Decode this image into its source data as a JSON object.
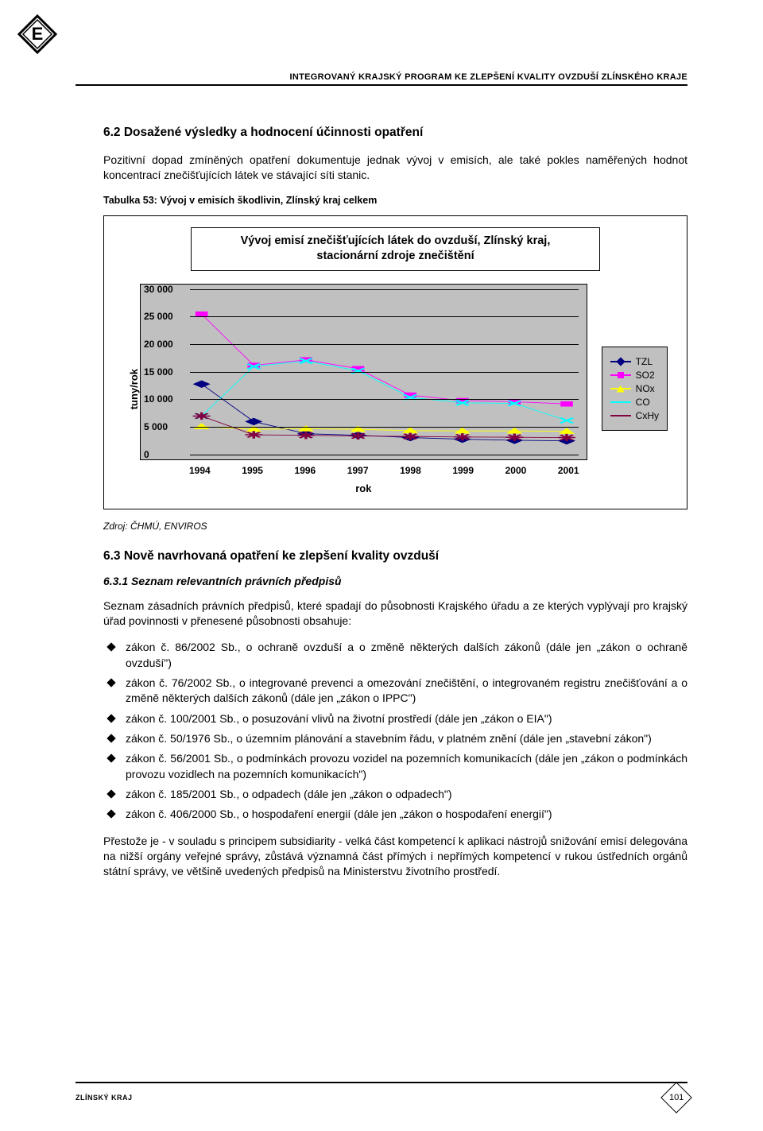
{
  "header": {
    "program_label": "INTEGROVANÝ KRAJSKÝ PROGRAM KE ZLEPŠENÍ KVALITY OVZDUŠÍ ZLÍNSKÉHO KRAJE"
  },
  "section_6_2": {
    "heading": "6.2   Dosažené výsledky a hodnocení účinnosti opatření",
    "paragraph": "Pozitivní dopad zmíněných opatření dokumentuje jednak vývoj v emisích, ale také pokles naměřených hodnot koncentrací znečišťujících látek ve stávající síti stanic.",
    "table_caption": "Tabulka 53:  Vývoj v emisích škodlivin, Zlínský kraj celkem"
  },
  "chart": {
    "title_line1": "Vývoj emisí znečišťujících látek do ovzduší, Zlínský kraj,",
    "title_line2": "stacionární zdroje znečištění",
    "y_label": "tuny/rok",
    "x_label": "rok",
    "ylim": [
      0,
      30000
    ],
    "ytick_step": 5000,
    "yticks": [
      "0",
      "5 000",
      "10 000",
      "15 000",
      "20 000",
      "25 000",
      "30 000"
    ],
    "xticks": [
      "1994",
      "1995",
      "1996",
      "1997",
      "1998",
      "1999",
      "2000",
      "2001"
    ],
    "plot_bg": "#c0c0c0",
    "grid_color": "#000000",
    "series": [
      {
        "name": "TZL",
        "label": "TZL",
        "color": "#000080",
        "marker": "diamond",
        "values": [
          12800,
          6000,
          3800,
          3500,
          3100,
          2800,
          2600,
          2500
        ]
      },
      {
        "name": "SO2",
        "label": "SO2",
        "color": "#ff00ff",
        "marker": "square",
        "values": [
          25500,
          16200,
          17200,
          15600,
          10800,
          9800,
          9600,
          9200
        ]
      },
      {
        "name": "NOx",
        "label": "NOx",
        "color": "#ffff00",
        "marker": "triangle",
        "values": [
          5100,
          4600,
          4700,
          4600,
          4350,
          4300,
          4300,
          4250
        ]
      },
      {
        "name": "CO",
        "label": "CO",
        "color": "#00ffff",
        "marker": "x",
        "values": [
          7000,
          16000,
          17000,
          15200,
          10400,
          9400,
          9300,
          6200
        ]
      },
      {
        "name": "CxHy",
        "label": "CxHy",
        "color": "#800040",
        "marker": "star",
        "values": [
          7000,
          3600,
          3500,
          3400,
          3300,
          3200,
          3150,
          3100
        ]
      }
    ]
  },
  "source": "Zdroj: ČHMÚ, ENVIROS",
  "section_6_3": {
    "heading": "6.3   Nově navrhovaná opatření ke zlepšení kvality ovzduší",
    "sub_heading": "6.3.1   Seznam relevantních právních předpisů",
    "intro": "Seznam zásadních právních předpisů, které spadají do působnosti Krajského úřadu a ze kterých vyplývají pro krajský úřad povinnosti v přenesené působnosti obsahuje:",
    "bullets": [
      "zákon č. 86/2002 Sb., o ochraně ovzduší a o změně některých dalších zákonů (dále jen „zákon o ochraně ovzduší\")",
      "zákon č. 76/2002 Sb., o integrované prevenci a omezování znečištění, o integrovaném registru znečišťování a o změně některých dalších zákonů (dále jen „zákon o IPPC\")",
      "zákon č. 100/2001 Sb., o posuzování vlivů na životní prostředí (dále jen „zákon o EIA\")",
      "zákon č. 50/1976 Sb., o územním plánování a stavebním řádu, v platném znění (dále jen „stavební zákon\")",
      "zákon č. 56/2001 Sb., o podmínkách provozu vozidel na pozemních komunikacích (dále jen „zákon o podmínkách provozu vozidlech na pozemních komunikacích\")",
      "zákon č. 185/2001 Sb., o odpadech (dále jen „zákon o odpadech\")",
      "zákon č. 406/2000 Sb., o hospodaření energií (dále jen „zákon o hospodaření energií\")"
    ],
    "closing": "Přestože je - v souladu s principem subsidiarity - velká část kompetencí k aplikaci nástrojů snižování emisí delegována na nižší orgány veřejné správy, zůstává významná část přímých i nepřímých kompetencí v rukou ústředních orgánů státní správy, ve většině uvedených předpisů na Ministerstvu životního prostředí."
  },
  "footer": {
    "label": "ZLÍNSKÝ KRAJ",
    "page": "101"
  }
}
